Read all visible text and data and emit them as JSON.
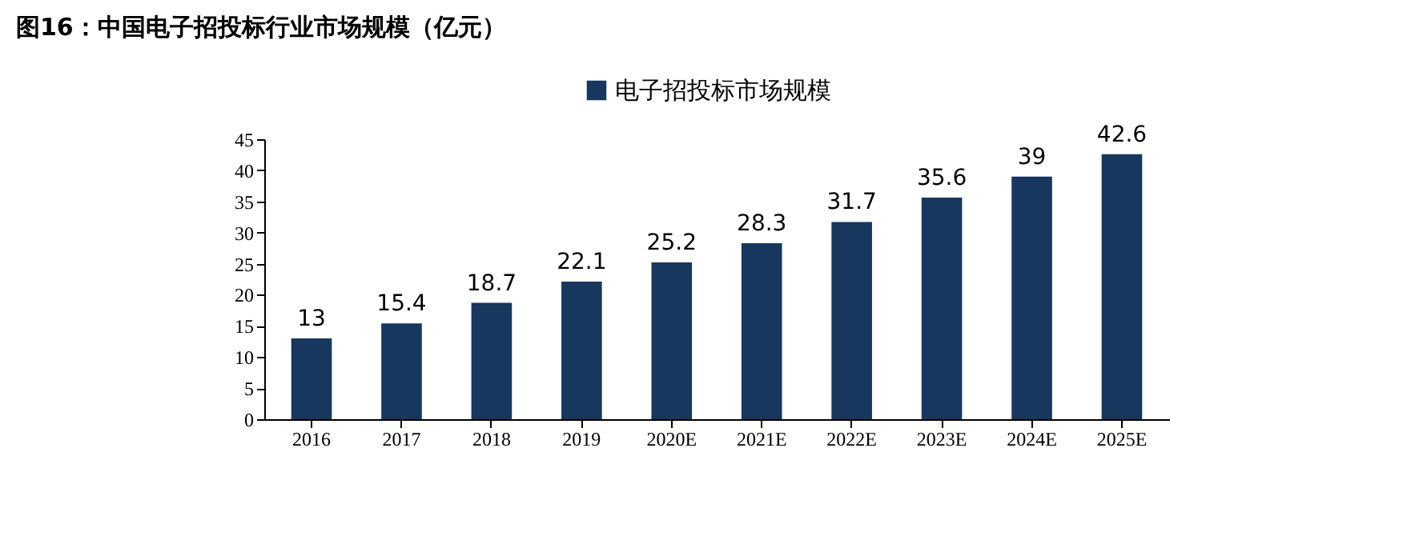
{
  "chart_data": {
    "type": "bar",
    "title": "图16：中国电子招投标行业市场规模（亿元）",
    "categories": [
      "2016",
      "2017",
      "2018",
      "2019",
      "2020E",
      "2021E",
      "2022E",
      "2023E",
      "2024E",
      "2025E"
    ],
    "series": [
      {
        "name": "电子招投标市场规模",
        "color": "#17375e",
        "values": [
          13,
          15.4,
          18.7,
          22.1,
          25.2,
          28.3,
          31.7,
          35.6,
          39,
          42.6
        ]
      }
    ],
    "ylim": [
      0,
      45
    ],
    "yticks": [
      0,
      5,
      10,
      15,
      20,
      25,
      30,
      35,
      40,
      45
    ],
    "grid": false,
    "legend": "top",
    "data_labels": true
  }
}
